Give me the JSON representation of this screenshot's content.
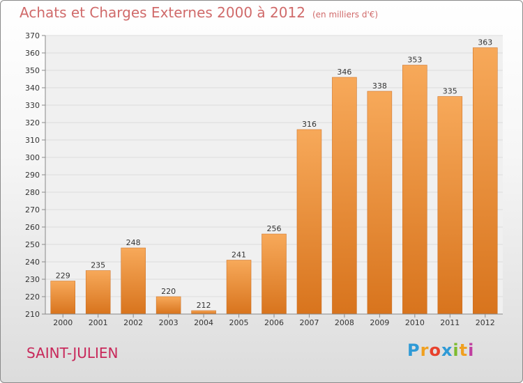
{
  "title": "Achats et Charges Externes 2000 à 2012",
  "unit_note": "(en milliers d'€)",
  "city": "SAINT-JULIEN",
  "logo": {
    "text": "Proxiti",
    "letters": [
      "P",
      "r",
      "o",
      "x",
      "i",
      "t",
      "i"
    ],
    "colors": [
      "#2f9ad6",
      "#f0a020",
      "#e8412d",
      "#2f9ad6",
      "#7dbb2f",
      "#f0a020",
      "#c03fa0"
    ]
  },
  "colors": {
    "bar_top": "#f7a95a",
    "bar_bottom": "#d8741d",
    "bar_edge": "#c86a1e",
    "title": "#d06a6a",
    "city": "#c8285a"
  },
  "chart_data": {
    "type": "bar",
    "title": "Achats et Charges Externes 2000 à 2012",
    "subtitle": "(en milliers d'€)",
    "categories": [
      "2000",
      "2001",
      "2002",
      "2003",
      "2004",
      "2005",
      "2006",
      "2007",
      "2008",
      "2009",
      "2010",
      "2011",
      "2012"
    ],
    "values": [
      229,
      235,
      248,
      220,
      212,
      241,
      256,
      316,
      346,
      338,
      353,
      335,
      363
    ],
    "ylim": [
      210,
      370
    ],
    "yticks": [
      210,
      220,
      230,
      240,
      250,
      260,
      270,
      280,
      290,
      300,
      310,
      320,
      330,
      340,
      350,
      360,
      370
    ],
    "grid": true,
    "data_labels": true
  }
}
